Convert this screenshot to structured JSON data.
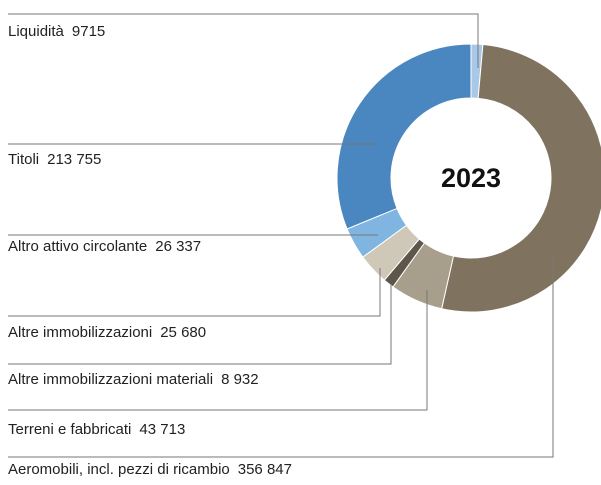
{
  "chart_data": {
    "type": "donut",
    "center_label": "2023",
    "categories": [
      "Liquidità",
      "Aeromobili, incl. pezzi di ricambio",
      "Terreni e fabbricati",
      "Altre immobilizzazioni materiali",
      "Altre immobilizzazioni",
      "Altro attivo circolante",
      "Titoli"
    ],
    "values": [
      9715,
      356847,
      43713,
      8932,
      25680,
      26337,
      213755
    ],
    "value_labels": [
      "9715",
      "356 847",
      "43 713",
      "8 932",
      "25 680",
      "26 337",
      "213 755"
    ],
    "colors": [
      "#a9c8e8",
      "#7f7360",
      "#a89e8c",
      "#5e5749",
      "#cfc8b8",
      "#7fb5e0",
      "#4a86c0"
    ]
  }
}
